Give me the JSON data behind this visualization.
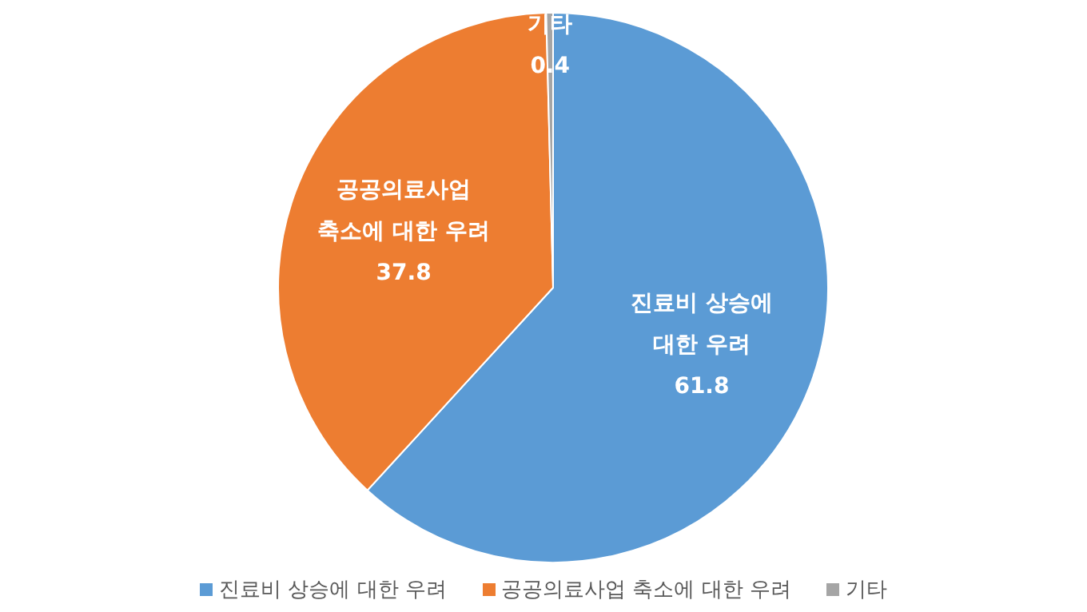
{
  "chart_data": {
    "type": "pie",
    "categories": [
      "진료비 상승에 대한 우려",
      "공공의료사업 축소에 대한 우려",
      "기타"
    ],
    "values": [
      61.8,
      37.8,
      0.4
    ],
    "colors": [
      "#5b9bd5",
      "#ed7d31",
      "#a5a5a5"
    ],
    "data_labels": true,
    "legend": "bottom"
  }
}
